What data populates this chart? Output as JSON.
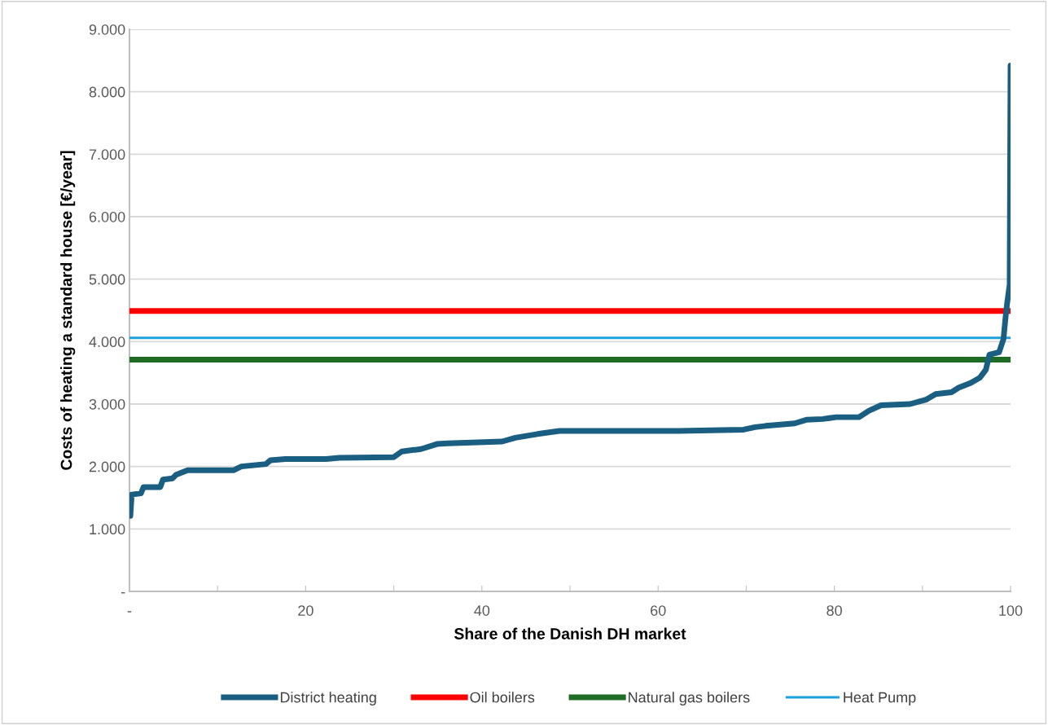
{
  "chart_data": {
    "type": "line",
    "xlabel": "Share of the Danish DH market",
    "ylabel": "Costs of heating a standard house [€/year]",
    "xlim": [
      0,
      100
    ],
    "xticks": [
      {
        "value": 0,
        "label": "-"
      },
      {
        "value": 10,
        "label": null
      },
      20,
      {
        "value": 30,
        "label": null
      },
      40,
      {
        "value": 50,
        "label": null
      },
      60,
      {
        "value": 70,
        "label": null
      },
      80,
      {
        "value": 90,
        "label": null
      },
      100
    ],
    "ylim": [
      0,
      9000
    ],
    "yticks": [
      {
        "value": 0,
        "label": "-"
      },
      {
        "value": 1000,
        "label": "1.000"
      },
      {
        "value": 2000,
        "label": "2.000"
      },
      {
        "value": 3000,
        "label": "3.000"
      },
      {
        "value": 4000,
        "label": "4.000"
      },
      {
        "value": 5000,
        "label": "5.000"
      },
      {
        "value": 6000,
        "label": "6.000"
      },
      {
        "value": 7000,
        "label": "7.000"
      },
      {
        "value": 8000,
        "label": "8.000"
      },
      {
        "value": 9000,
        "label": "9.000"
      }
    ],
    "grid": "y",
    "legend": "bottom",
    "marker": "none",
    "line_style": "solid",
    "series": [
      {
        "name": "District heating",
        "color": "#1a5f82",
        "x": [
          0.1,
          0.25,
          1.3,
          1.6,
          3.5,
          3.8,
          4.9,
          5.3,
          6.6,
          11.8,
          12.7,
          15.5,
          16,
          17.7,
          22.3,
          23.8,
          30,
          30.9,
          33.1,
          34.9,
          36.1,
          42.3,
          43.8,
          46.3,
          48.8,
          62.3,
          69.7,
          71,
          72.2,
          75.5,
          76.9,
          78.7,
          80.2,
          82.8,
          83.9,
          85.3,
          88.6,
          90.4,
          91.5,
          93.3,
          94.1,
          95.5,
          96.5,
          97.2,
          97.6,
          98.7,
          99.2,
          99.4,
          99.6,
          99.9,
          100
        ],
        "values": [
          1210,
          1550,
          1570,
          1670,
          1670,
          1790,
          1810,
          1870,
          1940,
          1940,
          2000,
          2040,
          2100,
          2120,
          2120,
          2140,
          2150,
          2240,
          2280,
          2360,
          2370,
          2400,
          2460,
          2520,
          2570,
          2570,
          2590,
          2630,
          2650,
          2690,
          2750,
          2760,
          2790,
          2790,
          2890,
          2980,
          3000,
          3070,
          3160,
          3190,
          3260,
          3340,
          3420,
          3550,
          3790,
          3830,
          4040,
          4340,
          4600,
          4910,
          8420
        ]
      },
      {
        "name": "Oil boilers",
        "color": "#ff0000",
        "x": [
          0,
          100
        ],
        "values": [
          4490,
          4490
        ]
      },
      {
        "name": "Natural gas boilers",
        "color": "#1e6b23",
        "x": [
          0,
          100
        ],
        "values": [
          3710,
          3710
        ]
      },
      {
        "name": "Heat Pump",
        "color": "#1ba1dc",
        "x": [
          0,
          100
        ],
        "values": [
          4060,
          4060
        ]
      }
    ]
  }
}
